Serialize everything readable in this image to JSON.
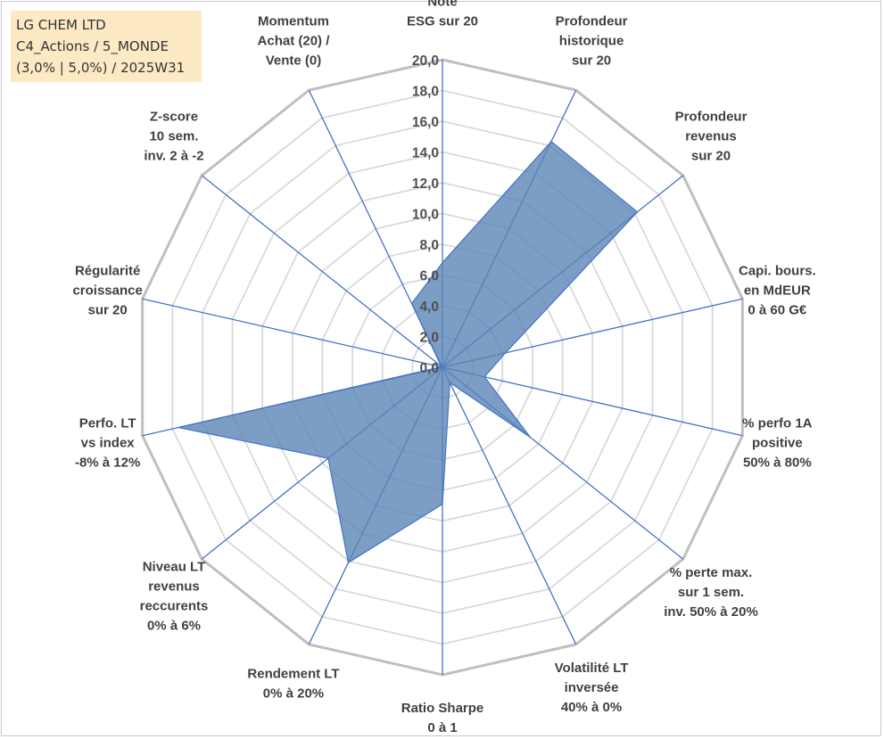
{
  "title_box": {
    "line1": "LG CHEM LTD",
    "line2": "C4_Actions / 5_MONDE",
    "line3": "(3,0% | 5,0%) / 2025W31"
  },
  "colors": {
    "series_fill": "#5b84b5",
    "series_stroke": "#4472c4",
    "grid_outer": "#bfbfbf",
    "grid_inner": "#d9d9d9",
    "spoke": "#4472c4",
    "title_bg": "#fde9c4"
  },
  "chart_data": {
    "type": "radar",
    "rmin": 0,
    "rmax": 20,
    "tick_step": 2,
    "tick_labels": [
      "0,0",
      "2,0",
      "4,0",
      "6,0",
      "8,0",
      "10,0",
      "12,0",
      "14,0",
      "16,0",
      "18,0",
      "20,0"
    ],
    "axes": [
      [
        "Note",
        "ESG sur 20"
      ],
      [
        "Profondeur",
        "historique",
        "sur 20"
      ],
      [
        "Profondeur",
        "revenus",
        "sur 20"
      ],
      [
        "Capi. bours.",
        "en MdEUR",
        "0 à 60 G€"
      ],
      [
        "% perfo 1A",
        "positive",
        "50% à 80%"
      ],
      [
        "% perte max.",
        "sur 1 sem.",
        "inv. 50% à 20%"
      ],
      [
        "Volatilité LT",
        "inversée",
        "40% à 0%"
      ],
      [
        "Ratio Sharpe",
        "0 à 1"
      ],
      [
        "Rendement LT",
        "0% à 20%"
      ],
      [
        "Niveau LT",
        "revenus",
        "reccurents",
        "0% à 6%"
      ],
      [
        "Perfo. LT",
        "vs index",
        "-8% à 12%"
      ],
      [
        "Régularité",
        "croissance",
        "sur 20"
      ],
      [
        "Z-score",
        "10 sem.",
        "inv. 2 à -2"
      ],
      [
        "Momentum",
        "Achat (20) /",
        "Vente (0)"
      ]
    ],
    "values": [
      6.8,
      16.3,
      16.2,
      4.2,
      2.8,
      7.3,
      1.1,
      8.9,
      14.1,
      9.5,
      17.6,
      0.1,
      0.1,
      4.6
    ]
  }
}
